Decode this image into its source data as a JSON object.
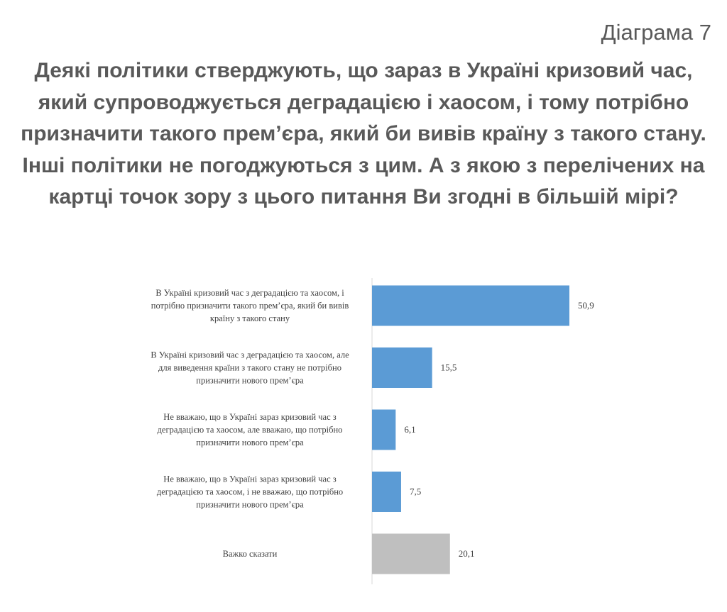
{
  "header": {
    "diagram_number": "Діаграма 7",
    "title": "Деякі політики стверджують, що зараз в Україні кризовий час, який супроводжується деградацією і хаосом, і тому потрібно призначити такого прем’єра, який би вивів країну з такого стану. Інші політики не погоджуються з цим. А з якою з перелічених на картці точок зору з цього питання Ви згодні в більшій мірі?"
  },
  "chart_data": {
    "type": "bar",
    "orientation": "horizontal",
    "categories": [
      "В Україні кризовий час з деградацією та хаосом, і потрібно призначити такого прем’єра, який би вивів країну з такого стану",
      "В Україні кризовий час з деградацією та хаосом, але для виведення країни з такого стану не потрібно призначити нового прем’єра",
      "Не вважаю, що в Україні зараз кризовий час з деградацією та хаосом, але вважаю, що потрібно призначити нового прем’єра",
      "Не вважаю, що в Україні зараз кризовий час з деградацією та хаосом, і не вважаю, що потрібно призначити нового прем’єра",
      "Важко сказати"
    ],
    "category_label_lines": [
      [
        "В Україні кризовий час з деградацією та хаосом, і",
        "потрібно призначити такого прем’єра, який би вивів",
        "країну з такого стану"
      ],
      [
        "В Україні кризовий час з деградацією та хаосом, але",
        "для виведення країни з такого стану не потрібно",
        "призначити нового прем’єра"
      ],
      [
        "Не вважаю, що в Україні зараз кризовий час з",
        "деградацією та хаосом, але вважаю, що потрібно",
        "призначити нового прем’єра"
      ],
      [
        "Не вважаю, що в Україні зараз кризовий час з",
        "деградацією та хаосом, і не вважаю, що потрібно",
        "призначити нового прем’єра"
      ],
      [
        "Важко сказати"
      ]
    ],
    "values": [
      50.9,
      15.5,
      6.1,
      7.5,
      20.1
    ],
    "value_labels": [
      "50,9",
      "15,5",
      "6,1",
      "7,5",
      "20,1"
    ],
    "bar_colors": [
      "#5b9bd5",
      "#5b9bd5",
      "#5b9bd5",
      "#5b9bd5",
      "#bfbfbf"
    ],
    "xlim": [
      0,
      55
    ],
    "grid": false,
    "legend": "none"
  }
}
